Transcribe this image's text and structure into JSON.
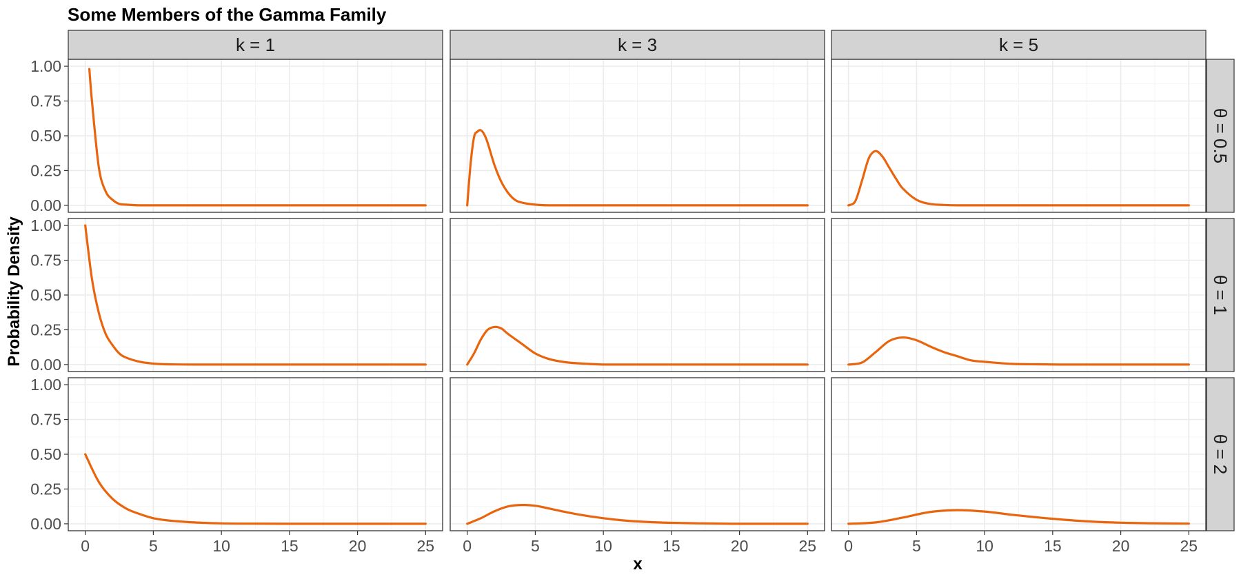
{
  "chart_data": {
    "type": "line",
    "title": "Some Members of the Gamma Family",
    "xlabel": "x",
    "ylabel": "Probability Density",
    "x_range": [
      0,
      25
    ],
    "xlim": [
      -1.25,
      26.25
    ],
    "ylim": [
      -0.05,
      1.05
    ],
    "x_ticks": [
      0,
      5,
      10,
      15,
      20,
      25
    ],
    "y_ticks": [
      0,
      0.25,
      0.5,
      0.75,
      1
    ],
    "x_tick_labels": [
      "0",
      "5",
      "10",
      "15",
      "20",
      "25"
    ],
    "y_tick_labels": [
      "0.00",
      "0.25",
      "0.50",
      "0.75",
      "1.00"
    ],
    "grid": true,
    "line_color": "#E8650E",
    "facet_columns": [
      "k = 1",
      "k = 3",
      "k = 5"
    ],
    "facet_rows": [
      "θ = 0.5",
      "θ = 1",
      "θ = 2"
    ],
    "panels": [
      {
        "row": "θ = 0.5",
        "col": "k = 1",
        "x": [
          0.3,
          0.5,
          1,
          1.5,
          2,
          2.5,
          3,
          4,
          5,
          7,
          10,
          15,
          20,
          25
        ],
        "y": [
          0.98,
          0.74,
          0.27,
          0.1,
          0.04,
          0.01,
          0.005,
          0,
          0,
          0,
          0,
          0,
          0,
          0
        ]
      },
      {
        "row": "θ = 0.5",
        "col": "k = 3",
        "x": [
          0,
          0.25,
          0.5,
          0.75,
          1,
          1.25,
          1.5,
          2,
          2.5,
          3,
          3.5,
          4,
          5,
          6,
          8,
          10,
          15,
          20,
          25
        ],
        "y": [
          0,
          0.3,
          0.49,
          0.53,
          0.54,
          0.51,
          0.45,
          0.29,
          0.17,
          0.09,
          0.04,
          0.02,
          0.005,
          0,
          0,
          0,
          0,
          0,
          0
        ]
      },
      {
        "row": "θ = 0.5",
        "col": "k = 5",
        "x": [
          0,
          0.5,
          1,
          1.5,
          2,
          2.5,
          3,
          3.5,
          4,
          5,
          6,
          7,
          8,
          10,
          15,
          20,
          25
        ],
        "y": [
          0,
          0.03,
          0.18,
          0.34,
          0.39,
          0.35,
          0.27,
          0.19,
          0.12,
          0.04,
          0.01,
          0.003,
          0,
          0,
          0,
          0,
          0
        ]
      },
      {
        "row": "θ = 1",
        "col": "k = 1",
        "x": [
          0,
          0.5,
          1,
          1.5,
          2,
          2.5,
          3,
          4,
          5,
          6,
          8,
          10,
          15,
          20,
          25
        ],
        "y": [
          1,
          0.61,
          0.37,
          0.22,
          0.14,
          0.08,
          0.05,
          0.02,
          0.007,
          0.002,
          0,
          0,
          0,
          0,
          0
        ]
      },
      {
        "row": "θ = 1",
        "col": "k = 3",
        "x": [
          0,
          0.5,
          1,
          1.5,
          2,
          2.5,
          3,
          4,
          5,
          6,
          7,
          8,
          10,
          12,
          15,
          20,
          25
        ],
        "y": [
          0,
          0.08,
          0.18,
          0.25,
          0.27,
          0.26,
          0.22,
          0.15,
          0.08,
          0.04,
          0.02,
          0.01,
          0,
          0,
          0,
          0,
          0
        ]
      },
      {
        "row": "θ = 1",
        "col": "k = 5",
        "x": [
          0,
          1,
          2,
          3,
          4,
          5,
          6,
          7,
          8,
          9,
          10,
          12,
          14,
          16,
          20,
          25
        ],
        "y": [
          0,
          0.015,
          0.09,
          0.17,
          0.195,
          0.175,
          0.13,
          0.09,
          0.06,
          0.03,
          0.02,
          0.005,
          0.002,
          0,
          0,
          0
        ]
      },
      {
        "row": "θ = 2",
        "col": "k = 1",
        "x": [
          0,
          1,
          2,
          3,
          4,
          5,
          6,
          8,
          10,
          12,
          15,
          20,
          25
        ],
        "y": [
          0.5,
          0.3,
          0.18,
          0.11,
          0.07,
          0.04,
          0.025,
          0.01,
          0.003,
          0.001,
          0,
          0,
          0
        ]
      },
      {
        "row": "θ = 2",
        "col": "k = 3",
        "x": [
          0,
          1,
          2,
          3,
          4,
          5,
          6,
          8,
          10,
          12,
          14,
          16,
          18,
          20,
          25
        ],
        "y": [
          0,
          0.04,
          0.09,
          0.125,
          0.135,
          0.13,
          0.11,
          0.07,
          0.04,
          0.02,
          0.01,
          0.005,
          0.002,
          0,
          0
        ]
      },
      {
        "row": "θ = 2",
        "col": "k = 5",
        "x": [
          0,
          2,
          4,
          6,
          8,
          10,
          12,
          14,
          16,
          18,
          20,
          22,
          25
        ],
        "y": [
          0,
          0.01,
          0.045,
          0.085,
          0.098,
          0.088,
          0.065,
          0.045,
          0.028,
          0.015,
          0.008,
          0.004,
          0.001
        ]
      }
    ]
  }
}
